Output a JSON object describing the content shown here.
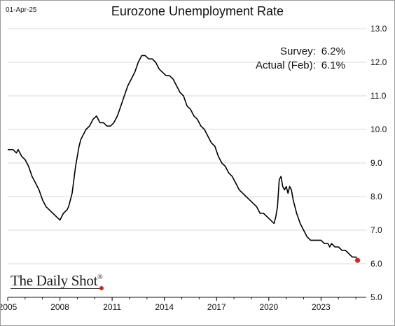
{
  "header": {
    "date": "01-Apr-25",
    "title": "Eurozone Unemployment Rate"
  },
  "annotations": {
    "survey_label": "Survey:",
    "survey_value": "6.2%",
    "actual_label": "Actual (Feb):",
    "actual_value": "6.1%"
  },
  "watermark": {
    "text": "The Daily Shot",
    "mark": "®"
  },
  "colors": {
    "line": "#000000",
    "last_point": "#e02020",
    "grid": "#d9d9d9"
  },
  "chart_data": {
    "type": "line",
    "title": "Eurozone Unemployment Rate",
    "xlabel": "",
    "ylabel": "",
    "x_ticks": [
      "2005",
      "2008",
      "2011",
      "2014",
      "2017",
      "2020",
      "2023"
    ],
    "y_ticks": [
      "13.0",
      "12.0",
      "11.0",
      "10.0",
      "9.0",
      "8.0",
      "7.0",
      "6.0",
      "5.0"
    ],
    "xlim": [
      2005.0,
      2025.6
    ],
    "ylim": [
      5.0,
      13.0
    ],
    "y_axis_side": "right",
    "grid": "horizontal",
    "series": [
      {
        "name": "",
        "x": [
          2005.0,
          2005.3,
          2005.5,
          2005.6,
          2005.8,
          2006.0,
          2006.2,
          2006.4,
          2006.6,
          2006.8,
          2007.0,
          2007.2,
          2007.4,
          2007.6,
          2007.8,
          2008.0,
          2008.2,
          2008.4,
          2008.5,
          2008.7,
          2008.9,
          2009.0,
          2009.1,
          2009.2,
          2009.3,
          2009.5,
          2009.7,
          2009.9,
          2010.1,
          2010.3,
          2010.5,
          2010.7,
          2010.9,
          2011.1,
          2011.3,
          2011.5,
          2011.7,
          2011.9,
          2012.1,
          2012.3,
          2012.5,
          2012.7,
          2012.9,
          2013.1,
          2013.3,
          2013.5,
          2013.7,
          2013.9,
          2014.1,
          2014.3,
          2014.5,
          2014.7,
          2014.9,
          2015.1,
          2015.3,
          2015.5,
          2015.7,
          2015.9,
          2016.1,
          2016.3,
          2016.5,
          2016.7,
          2016.9,
          2017.1,
          2017.3,
          2017.5,
          2017.7,
          2017.9,
          2018.1,
          2018.3,
          2018.5,
          2018.7,
          2018.9,
          2019.1,
          2019.3,
          2019.5,
          2019.7,
          2019.9,
          2020.1,
          2020.3,
          2020.4,
          2020.5,
          2020.6,
          2020.7,
          2020.8,
          2020.9,
          2021.0,
          2021.1,
          2021.2,
          2021.3,
          2021.4,
          2021.5,
          2021.6,
          2021.8,
          2022.0,
          2022.2,
          2022.4,
          2022.6,
          2022.8,
          2023.0,
          2023.2,
          2023.4,
          2023.5,
          2023.6,
          2023.8,
          2024.0,
          2024.2,
          2024.4,
          2024.6,
          2024.8,
          2025.0,
          2025.1
        ],
        "y": [
          9.4,
          9.4,
          9.3,
          9.4,
          9.2,
          9.1,
          8.9,
          8.6,
          8.4,
          8.2,
          7.9,
          7.7,
          7.6,
          7.5,
          7.4,
          7.3,
          7.5,
          7.6,
          7.7,
          8.1,
          8.9,
          9.2,
          9.5,
          9.7,
          9.8,
          10.0,
          10.1,
          10.3,
          10.4,
          10.2,
          10.2,
          10.1,
          10.1,
          10.2,
          10.4,
          10.7,
          11.0,
          11.3,
          11.5,
          11.7,
          12.0,
          12.2,
          12.2,
          12.1,
          12.1,
          12.0,
          11.8,
          11.7,
          11.6,
          11.6,
          11.5,
          11.3,
          11.1,
          11.0,
          10.7,
          10.6,
          10.4,
          10.3,
          10.1,
          10.0,
          9.8,
          9.6,
          9.5,
          9.2,
          9.0,
          8.9,
          8.7,
          8.6,
          8.4,
          8.2,
          8.1,
          8.0,
          7.9,
          7.8,
          7.7,
          7.5,
          7.5,
          7.4,
          7.3,
          7.2,
          7.4,
          7.7,
          8.5,
          8.6,
          8.3,
          8.2,
          8.3,
          8.1,
          8.3,
          8.2,
          7.9,
          7.7,
          7.5,
          7.2,
          7.0,
          6.8,
          6.7,
          6.7,
          6.7,
          6.7,
          6.6,
          6.6,
          6.5,
          6.6,
          6.5,
          6.5,
          6.4,
          6.4,
          6.3,
          6.2,
          6.2,
          6.1
        ]
      }
    ],
    "last_point": {
      "x": 2025.1,
      "y": 6.1
    }
  }
}
